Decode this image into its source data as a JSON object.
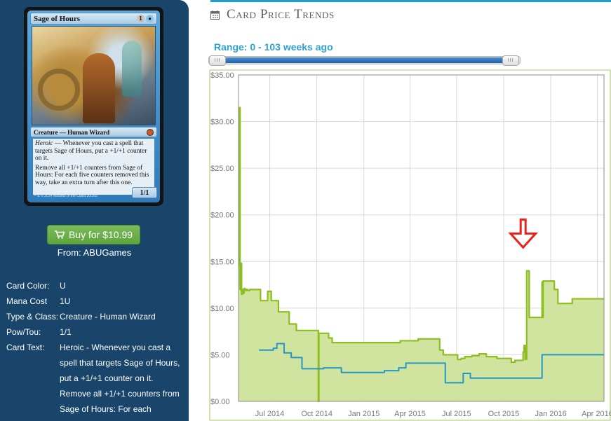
{
  "card": {
    "name": "Sage of Hours",
    "mana": {
      "generic": "1",
      "blue": "●"
    },
    "type_line": "Creature — Human Wizard",
    "heroic_word": "Heroic",
    "ability_1": " — Whenever you cast a spell that targets Sage of Hours, put a +1/+1 counter on it.",
    "ability_2": "Remove all +1/+1 counters from Sage of Hours: For each five counters removed this way, take an extra turn after this one.",
    "pt": "1/1",
    "artist": "Matt Stewart",
    "copyright": "™ & © 2014 Wizards of the Coast 30/165"
  },
  "buy": {
    "label": "Buy for $10.99",
    "from": "From: ABUGames"
  },
  "info": [
    {
      "label": "Card Color:",
      "value": "U"
    },
    {
      "label": "Mana Cost",
      "value": "1U"
    },
    {
      "label": "Type & Class:",
      "value": "Creature - Human Wizard"
    },
    {
      "label": "Pow/Tou:",
      "value": "1/1"
    },
    {
      "label": "Card Text:",
      "value": "Heroic - Whenever you cast a spell that targets Sage of Hours, put a +1/+1 counter on it. Remove all +1/+1 counters from Sage of Hours: For each"
    }
  ],
  "section": {
    "title": "Card Price Trends",
    "icon": "calendar-icon"
  },
  "range": {
    "label": "Range: 0 - 103 weeks ago",
    "min": 0,
    "max": 103
  },
  "colors": {
    "sidebar": "#19456b",
    "accent": "#2fa0d2",
    "buy_green": "#6aaf47",
    "price_line": "#8cbf1e",
    "price_fill": "#cfe39a",
    "foil_line": "#2398c4",
    "marker": "#e8231b"
  },
  "chart_data": {
    "type": "area",
    "title": "",
    "xlabel": "",
    "ylabel": "",
    "ylim": [
      0,
      35
    ],
    "xlim": [
      "2014-05-01",
      "2016-04-14"
    ],
    "y_ticks": [
      "$0.00",
      "$5.00",
      "$10.00",
      "$15.00",
      "$20.00",
      "$25.00",
      "$30.00",
      "$35.00"
    ],
    "y_tick_values": [
      0,
      5,
      10,
      15,
      20,
      25,
      30,
      35
    ],
    "x_ticks": [
      {
        "label": "Jul 2014",
        "date": "2014-07-01"
      },
      {
        "label": "Oct 2014",
        "date": "2014-10-01"
      },
      {
        "label": "Jan 2015",
        "date": "2015-01-01"
      },
      {
        "label": "Apr 2015",
        "date": "2015-04-01"
      },
      {
        "label": "Jul 2015",
        "date": "2015-07-01"
      },
      {
        "label": "Oct 2015",
        "date": "2015-10-01"
      },
      {
        "label": "Jan 2016",
        "date": "2016-01-01"
      },
      {
        "label": "Apr 2016",
        "date": "2016-04-01"
      }
    ],
    "grid": true,
    "series": [
      {
        "role": "price",
        "x": [
          "2014-05-01",
          "2014-05-02",
          "2014-05-03",
          "2014-05-04",
          "2014-05-05",
          "2014-05-07",
          "2014-05-09",
          "2014-05-10",
          "2014-05-12",
          "2014-05-14",
          "2014-05-16",
          "2014-05-19",
          "2014-05-23",
          "2014-05-30",
          "2014-06-06",
          "2014-06-13",
          "2014-06-20",
          "2014-06-27",
          "2014-07-04",
          "2014-07-11",
          "2014-07-18",
          "2014-07-25",
          "2014-08-01",
          "2014-08-08",
          "2014-08-15",
          "2014-08-22",
          "2014-08-29",
          "2014-09-05",
          "2014-09-12",
          "2014-09-19",
          "2014-09-26",
          "2014-10-03",
          "2014-10-04",
          "2014-10-05",
          "2014-10-10",
          "2014-10-17",
          "2014-10-24",
          "2014-10-31",
          "2014-11-07",
          "2014-11-14",
          "2014-11-21",
          "2014-11-28",
          "2014-12-05",
          "2014-12-12",
          "2014-12-19",
          "2014-12-26",
          "2015-01-02",
          "2015-01-09",
          "2015-01-16",
          "2015-01-23",
          "2015-01-30",
          "2015-02-06",
          "2015-02-13",
          "2015-02-20",
          "2015-02-27",
          "2015-03-06",
          "2015-03-13",
          "2015-03-20",
          "2015-03-27",
          "2015-04-03",
          "2015-04-10",
          "2015-04-17",
          "2015-04-24",
          "2015-05-01",
          "2015-05-08",
          "2015-05-15",
          "2015-05-22",
          "2015-05-29",
          "2015-06-05",
          "2015-06-12",
          "2015-06-19",
          "2015-06-26",
          "2015-07-03",
          "2015-07-10",
          "2015-07-17",
          "2015-07-24",
          "2015-07-31",
          "2015-08-07",
          "2015-08-14",
          "2015-08-21",
          "2015-08-28",
          "2015-09-04",
          "2015-09-11",
          "2015-09-18",
          "2015-09-25",
          "2015-10-02",
          "2015-10-09",
          "2015-10-16",
          "2015-10-23",
          "2015-10-30",
          "2015-11-02",
          "2015-11-05",
          "2015-11-08",
          "2015-11-10",
          "2015-11-12",
          "2015-11-15",
          "2015-11-20",
          "2015-11-27",
          "2015-12-04",
          "2015-12-11",
          "2015-12-14",
          "2015-12-15",
          "2015-12-16",
          "2015-12-17",
          "2015-12-18",
          "2015-12-25",
          "2016-01-01",
          "2016-01-08",
          "2016-01-15",
          "2016-01-22",
          "2016-01-29",
          "2016-02-05",
          "2016-02-12",
          "2016-02-19",
          "2016-02-26",
          "2016-03-04",
          "2016-03-11",
          "2016-03-18",
          "2016-03-25",
          "2016-04-01",
          "2016-04-14"
        ],
        "y": [
          21.8,
          14.5,
          31.5,
          12.0,
          14.8,
          11.5,
          12.0,
          11.6,
          12.1,
          11.9,
          12.0,
          11.9,
          12.0,
          12.0,
          12.0,
          10.8,
          10.8,
          11.8,
          10.8,
          10.8,
          9.6,
          9.6,
          9.6,
          8.3,
          8.3,
          7.6,
          7.6,
          7.6,
          7.6,
          7.6,
          7.6,
          7.6,
          0.0,
          7.3,
          7.3,
          7.3,
          6.8,
          6.3,
          6.3,
          6.3,
          6.3,
          6.3,
          6.3,
          6.3,
          6.3,
          6.3,
          6.3,
          6.3,
          6.3,
          6.3,
          6.3,
          6.3,
          6.3,
          6.3,
          6.3,
          6.3,
          6.5,
          6.5,
          6.5,
          6.5,
          6.5,
          6.7,
          6.7,
          6.7,
          6.7,
          6.7,
          6.7,
          5.5,
          5.0,
          5.0,
          5.0,
          5.0,
          4.5,
          4.6,
          4.8,
          4.8,
          4.9,
          4.9,
          5.1,
          5.1,
          4.8,
          4.8,
          4.8,
          4.6,
          4.6,
          4.6,
          4.6,
          4.2,
          4.4,
          4.4,
          4.4,
          4.4,
          5.3,
          6.0,
          4.5,
          14.0,
          9.0,
          9.0,
          9.0,
          9.0,
          9.0,
          12.8,
          9.0,
          12.9,
          12.9,
          12.9,
          12.9,
          12.0,
          10.5,
          10.5,
          10.5,
          10.5,
          11.0,
          11.0,
          11.0,
          11.0,
          11.0,
          11.0,
          11.0,
          11.0,
          11.0
        ]
      },
      {
        "role": "foil",
        "x": [
          "2014-06-10",
          "2014-06-24",
          "2014-07-08",
          "2014-07-15",
          "2014-07-22",
          "2014-07-29",
          "2014-08-05",
          "2014-08-12",
          "2014-09-02",
          "2014-09-30",
          "2014-10-14",
          "2014-10-28",
          "2014-11-18",
          "2014-12-16",
          "2015-01-13",
          "2015-02-10",
          "2015-03-10",
          "2015-03-24",
          "2015-04-14",
          "2015-05-12",
          "2015-06-02",
          "2015-06-09",
          "2015-07-07",
          "2015-07-14",
          "2015-07-28",
          "2015-08-25",
          "2015-09-22",
          "2015-10-20",
          "2015-11-17",
          "2015-12-08",
          "2015-12-15",
          "2016-01-12",
          "2016-02-16",
          "2016-03-15",
          "2016-04-14"
        ],
        "y": [
          5.5,
          5.5,
          5.7,
          6.2,
          6.2,
          5.2,
          5.2,
          4.7,
          3.5,
          3.5,
          3.6,
          3.6,
          3.1,
          3.1,
          3.1,
          3.3,
          3.6,
          4.1,
          4.1,
          4.1,
          4.1,
          2.0,
          2.0,
          3.0,
          2.5,
          2.5,
          2.5,
          2.5,
          2.5,
          2.5,
          5.0,
          5.0,
          5.0,
          5.0,
          5.0
        ]
      }
    ],
    "annotation": {
      "type": "down-arrow",
      "date": "2015-11-08",
      "value": 16.5
    }
  }
}
